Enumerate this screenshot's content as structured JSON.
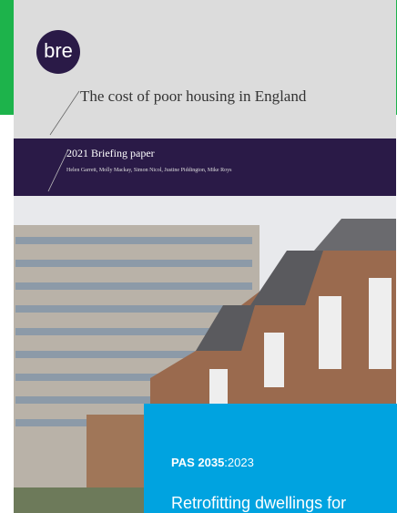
{
  "cover": {
    "logo": "bre",
    "title": "The cost of poor housing in England",
    "subtitle": "2021 Briefing paper",
    "authors": "Helen Garrett, Molly Mackay, Simon Nicol, Justine Piddington, Mike Roys"
  },
  "inset": {
    "code": "PAS 2035",
    "year": ":2023",
    "title": "Retrofitting dwellings for"
  }
}
